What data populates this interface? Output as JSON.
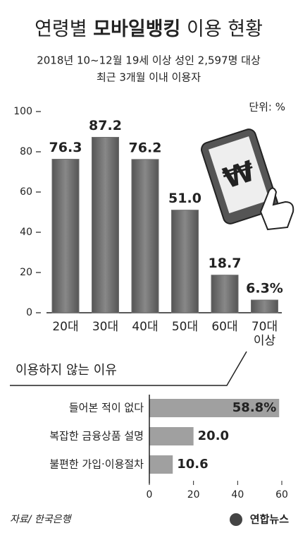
{
  "header": {
    "title": {
      "pre": "연령별",
      "bold": "모바일뱅킹",
      "post": "이용 현황"
    },
    "subtitle": [
      "2018년 10~12월 19세 이상 성인 2,597명 대상",
      "최근 3개월 이내 이용자"
    ]
  },
  "chart_data": [
    {
      "type": "bar",
      "unit_label": "단위: %",
      "categories": [
        "20대",
        "30대",
        "40대",
        "50대",
        "60대",
        "70대 이상"
      ],
      "values": [
        76.3,
        87.2,
        76.2,
        51.0,
        18.7,
        6.3
      ],
      "value_labels": [
        "76.3",
        "87.2",
        "76.2",
        "51.0",
        "18.7",
        "6.3%"
      ],
      "ylim": [
        0,
        100
      ],
      "yticks": [
        0,
        20,
        40,
        60,
        80,
        100
      ],
      "color": "#6e6e6e"
    },
    {
      "type": "barh",
      "title": "이용하지 않는 이유",
      "categories": [
        "들어본 적이 없다",
        "복잡한 금융상품 설명",
        "불편한 가입·이용절차"
      ],
      "values": [
        58.8,
        20.0,
        10.6
      ],
      "value_labels": [
        "58.8%",
        "20.0",
        "10.6"
      ],
      "xlim": [
        0,
        60
      ],
      "xticks": [
        0,
        20,
        40,
        60
      ],
      "color": "#a0a0a0"
    }
  ],
  "source": "자료/ 한국은행",
  "logo": "연합뉴스"
}
